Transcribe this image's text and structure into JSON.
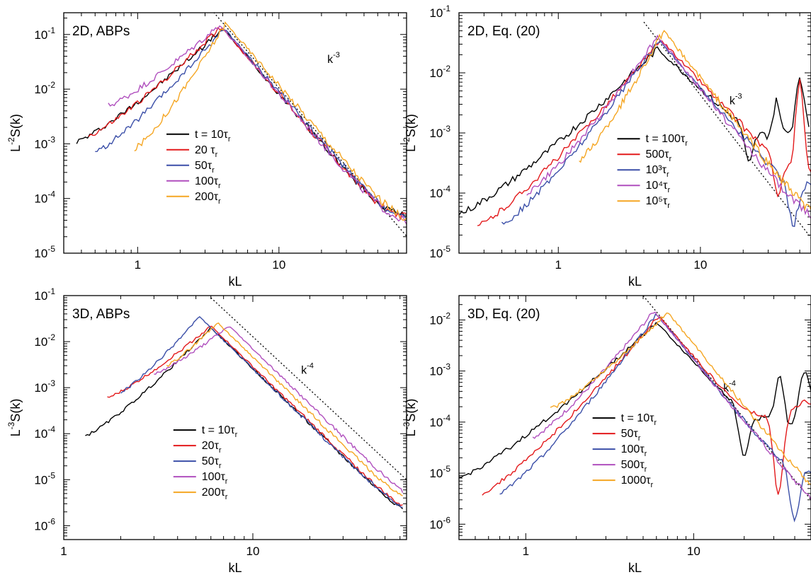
{
  "colors": {
    "black": "#000000",
    "red": "#e31a1c",
    "blue": "#3b4fa8",
    "purple": "#b04fbe",
    "orange": "#f5a623"
  },
  "chart_data": [
    {
      "id": "p1",
      "type": "line",
      "scale": "log-log",
      "panel_label": "2D, ABPs",
      "xlabel": "kL",
      "ylabel_base": "L",
      "ylabel_exp": "-2",
      "ylabel_tail": "S(k)",
      "xlim": [
        0.3,
        80
      ],
      "ylim": [
        1e-05,
        0.25
      ],
      "xticks": [
        {
          "v": 1,
          "label": "1"
        },
        {
          "v": 10,
          "label": "10"
        }
      ],
      "yticks": [
        {
          "v": 1e-05,
          "e": "-5"
        },
        {
          "v": 0.0001,
          "e": "-4"
        },
        {
          "v": 0.001,
          "e": "-3"
        },
        {
          "v": 0.01,
          "e": "-2"
        },
        {
          "v": 0.1,
          "e": "-1"
        }
      ],
      "slope": {
        "label_base": "k",
        "label_exp": "-3",
        "label_at": [
          22,
          0.03
        ],
        "points": [
          [
            3.2,
            0.32
          ],
          [
            80,
            2.05e-05
          ]
        ]
      },
      "legend": {
        "placement": "center",
        "at": [
          1.6,
          0.0015
        ]
      },
      "series": [
        {
          "name": "t = 10τ",
          "name_sub": "r",
          "color": "black",
          "peak": [
            4,
            0.13
          ],
          "low": [
            0.37,
            0.0011
          ],
          "cmin": [
            0.6,
            0.0006
          ],
          "dip": [],
          "start": 0.37,
          "end": 80,
          "tail": 3.3e-05,
          "slope": 3,
          "noise": 0.12
        },
        {
          "name": "20 τ",
          "name_sub": "r",
          "color": "red",
          "peak": [
            3.9,
            0.14
          ],
          "low": [
            0.45,
            0.0014
          ],
          "cmin": [
            0.6,
            0.0014
          ],
          "dip": [],
          "start": 0.45,
          "end": 80,
          "tail": 3e-05,
          "slope": 3,
          "noise": 0.13
        },
        {
          "name": "50τ",
          "name_sub": "r",
          "color": "blue",
          "peak": [
            4.1,
            0.13
          ],
          "low": [
            0.5,
            0.0007
          ],
          "cmin": [
            0.55,
            0.0007
          ],
          "dip": [],
          "start": 0.5,
          "end": 80,
          "tail": 2.5e-05,
          "slope": 3,
          "noise": 0.13
        },
        {
          "name": "100τ",
          "name_sub": "r",
          "color": "purple",
          "peak": [
            3.8,
            0.15
          ],
          "low": [
            0.62,
            0.005
          ],
          "cmin": [
            0.7,
            0.004
          ],
          "dip": [],
          "start": 0.62,
          "end": 80,
          "tail": 2.3e-05,
          "slope": 3,
          "noise": 0.14
        },
        {
          "name": "200τ",
          "name_sub": "r",
          "color": "orange",
          "peak": [
            4.2,
            0.16
          ],
          "low": [
            0.95,
            0.0008
          ],
          "cmin": [
            1.0,
            0.0008
          ],
          "dip": [],
          "start": 0.95,
          "end": 80,
          "tail": 2e-05,
          "slope": 3,
          "noise": 0.14
        }
      ]
    },
    {
      "id": "p2",
      "type": "line",
      "scale": "log-log",
      "panel_label": "2D, Eq. (20)",
      "xlabel": "kL",
      "ylabel_base": "L",
      "ylabel_exp": "-2",
      "ylabel_tail": "S(k)",
      "xlim": [
        0.2,
        60
      ],
      "ylim": [
        1e-05,
        0.1
      ],
      "xticks": [
        {
          "v": 1,
          "label": "1"
        },
        {
          "v": 10,
          "label": "10"
        }
      ],
      "yticks": [
        {
          "v": 1e-05,
          "e": "-5"
        },
        {
          "v": 0.0001,
          "e": "-4"
        },
        {
          "v": 0.001,
          "e": "-3"
        },
        {
          "v": 0.01,
          "e": "-2"
        },
        {
          "v": 0.1,
          "e": "-1"
        }
      ],
      "slope": {
        "label_base": "k",
        "label_exp": "-3",
        "label_at": [
          16,
          0.003
        ],
        "points": [
          [
            4,
            0.07
          ],
          [
            60,
            1.8e-05
          ]
        ]
      },
      "legend": {
        "placement": "center-right",
        "at": [
          2.6,
          0.0008
        ]
      },
      "series": [
        {
          "name": "t = 100τ",
          "name_sub": "r",
          "color": "black",
          "peak": [
            5,
            0.025
          ],
          "low": [
            0.2,
            4.5e-05
          ],
          "cmin": [],
          "dip": [
            [
              22,
              0.0003
            ],
            [
              35,
              0.004
            ],
            [
              40,
              0.001
            ],
            [
              50,
              0.009
            ]
          ],
          "start": 0.2,
          "end": 58,
          "tail": 0.001,
          "slope": 2.2,
          "noise": 0.14
        },
        {
          "name": "500τ",
          "name_sub": "r",
          "color": "red",
          "peak": [
            5.3,
            0.035
          ],
          "low": [
            0.27,
            2.8e-05
          ],
          "cmin": [],
          "dip": [
            [
              35,
              0.0001
            ],
            [
              50,
              0.007
            ]
          ],
          "start": 0.27,
          "end": 60,
          "tail": 0.0001,
          "slope": 2.5,
          "noise": 0.13
        },
        {
          "name": "10³τ",
          "name_sub": "r",
          "color": "blue",
          "peak": [
            5.1,
            0.035
          ],
          "low": [
            0.4,
            3e-05
          ],
          "cmin": [],
          "dip": [
            [
              45,
              3e-05
            ],
            [
              58,
              0.00015
            ]
          ],
          "start": 0.4,
          "end": 60,
          "tail": 3e-05,
          "slope": 2.7,
          "noise": 0.13
        },
        {
          "name": "10⁴τ",
          "name_sub": "r",
          "color": "purple",
          "peak": [
            5,
            0.04
          ],
          "low": [
            0.6,
            0.0001
          ],
          "cmin": [],
          "dip": [],
          "start": 0.6,
          "end": 60,
          "tail": 1.4e-05,
          "slope": 2.9,
          "noise": 0.13
        },
        {
          "name": "10⁵τ",
          "name_sub": "r",
          "color": "orange",
          "peak": [
            5.5,
            0.05
          ],
          "low": [
            1.4,
            0.00035
          ],
          "cmin": [],
          "dip": [],
          "start": 1.4,
          "end": 60,
          "tail": 1.2e-05,
          "slope": 3,
          "noise": 0.15
        }
      ]
    },
    {
      "id": "p3",
      "type": "line",
      "scale": "log-log",
      "panel_label": "3D, ABPs",
      "xlabel": "kL",
      "ylabel_base": "L",
      "ylabel_exp": "-3",
      "ylabel_tail": "S(k)",
      "xlim": [
        1,
        65
      ],
      "ylim": [
        5e-07,
        0.1
      ],
      "xticks": [
        {
          "v": 1,
          "label": "1"
        },
        {
          "v": 10,
          "label": "10"
        }
      ],
      "yticks": [
        {
          "v": 1e-06,
          "e": "-6"
        },
        {
          "v": 1e-05,
          "e": "-5"
        },
        {
          "v": 0.0001,
          "e": "-4"
        },
        {
          "v": 0.001,
          "e": "-3"
        },
        {
          "v": 0.01,
          "e": "-2"
        },
        {
          "v": 0.1,
          "e": "-1"
        }
      ],
      "slope": {
        "label_base": "k",
        "label_exp": "-4",
        "label_at": [
          18,
          0.002
        ],
        "points": [
          [
            6,
            0.09
          ],
          [
            65,
            1e-05
          ]
        ]
      },
      "legend": {
        "placement": "center",
        "at": [
          3.8,
          0.00012
        ]
      },
      "series": [
        {
          "name": "t = 10τ",
          "name_sub": "r",
          "color": "black",
          "peak": [
            6,
            0.02
          ],
          "low": [
            1.3,
            9e-05
          ],
          "cmin": [],
          "dip": [],
          "start": 1.3,
          "end": 62,
          "tail": 6e-07,
          "slope": 4,
          "noise": 0.08
        },
        {
          "name": "20τ",
          "name_sub": "r",
          "color": "red",
          "peak": [
            6,
            0.022
          ],
          "low": [
            1.7,
            0.0006
          ],
          "cmin": [],
          "dip": [],
          "start": 1.7,
          "end": 62,
          "tail": 7e-07,
          "slope": 4,
          "noise": 0.08
        },
        {
          "name": "50τ",
          "name_sub": "r",
          "color": "blue",
          "peak": [
            5.2,
            0.035
          ],
          "low": [
            2.0,
            0.0008
          ],
          "cmin": [],
          "dip": [],
          "start": 2.0,
          "end": 62,
          "tail": 8e-07,
          "slope": 4,
          "noise": 0.08
        },
        {
          "name": "100τ",
          "name_sub": "r",
          "color": "purple",
          "peak": [
            7.5,
            0.022
          ],
          "low": [
            3.0,
            0.002
          ],
          "cmin": [],
          "dip": [],
          "start": 3.0,
          "end": 62,
          "tail": 9e-07,
          "slope": 4,
          "noise": 0.08
        },
        {
          "name": "200τ",
          "name_sub": "r",
          "color": "orange",
          "peak": [
            6.5,
            0.026
          ],
          "low": [
            3.5,
            0.003
          ],
          "cmin": [],
          "dip": [],
          "start": 3.5,
          "end": 62,
          "tail": 1.2e-06,
          "slope": 4,
          "noise": 0.08
        }
      ]
    },
    {
      "id": "p4",
      "type": "line",
      "scale": "log-log",
      "panel_label": "3D, Eq. (20)",
      "xlabel": "kL",
      "ylabel_base": "L",
      "ylabel_exp": "-3",
      "ylabel_tail": "S(k)",
      "xlim": [
        0.4,
        50
      ],
      "ylim": [
        5e-07,
        0.03
      ],
      "xticks": [
        {
          "v": 1,
          "label": "1"
        },
        {
          "v": 10,
          "label": "10"
        }
      ],
      "yticks": [
        {
          "v": 1e-06,
          "e": "-6"
        },
        {
          "v": 1e-05,
          "e": "-5"
        },
        {
          "v": 0.0001,
          "e": "-4"
        },
        {
          "v": 0.001,
          "e": "-3"
        },
        {
          "v": 0.01,
          "e": "-2"
        }
      ],
      "slope": {
        "label_base": "k",
        "label_exp": "-4",
        "label_at": [
          15,
          0.0004
        ],
        "points": [
          [
            5,
            0.03
          ],
          [
            50,
            3e-06
          ]
        ]
      },
      "legend": {
        "placement": "center-right",
        "at": [
          2.5,
          0.00012
        ]
      },
      "series": [
        {
          "name": "t = 10τ",
          "name_sub": "r",
          "color": "black",
          "peak": [
            6,
            0.009
          ],
          "low": [
            0.4,
            8e-06
          ],
          "cmin": [
            0.6,
            9e-06
          ],
          "dip": [
            [
              20,
              2e-05
            ],
            [
              33,
              0.001
            ],
            [
              38,
              8e-05
            ],
            [
              46,
              0.001
            ]
          ],
          "start": 0.4,
          "end": 50,
          "tail": 0.0002,
          "slope": 3.5,
          "noise": 0.1
        },
        {
          "name": "50τ",
          "name_sub": "r",
          "color": "red",
          "peak": [
            6.2,
            0.012
          ],
          "low": [
            0.55,
            4e-06
          ],
          "cmin": [],
          "dip": [
            [
              32,
              4e-06
            ],
            [
              48,
              0.00025
            ]
          ],
          "start": 0.55,
          "end": 50,
          "tail": 0.00025,
          "slope": 3.8,
          "noise": 0.1
        },
        {
          "name": "100τ",
          "name_sub": "r",
          "color": "blue",
          "peak": [
            6,
            0.013
          ],
          "low": [
            0.7,
            4e-06
          ],
          "cmin": [],
          "dip": [
            [
              40,
              1.2e-06
            ],
            [
              50,
              1e-05
            ]
          ],
          "start": 0.7,
          "end": 50,
          "tail": 1e-05,
          "slope": 4,
          "noise": 0.1
        },
        {
          "name": "500τ",
          "name_sub": "r",
          "color": "purple",
          "peak": [
            5.8,
            0.015
          ],
          "low": [
            1.1,
            5e-05
          ],
          "cmin": [],
          "dip": [],
          "start": 1.1,
          "end": 50,
          "tail": 6e-07,
          "slope": 4,
          "noise": 0.1
        },
        {
          "name": "1000τ",
          "name_sub": "r",
          "color": "orange",
          "peak": [
            7,
            0.014
          ],
          "low": [
            1.4,
            0.00018
          ],
          "cmin": [],
          "dip": [],
          "start": 1.4,
          "end": 50,
          "tail": 5e-07,
          "slope": 4,
          "noise": 0.1
        }
      ]
    }
  ]
}
